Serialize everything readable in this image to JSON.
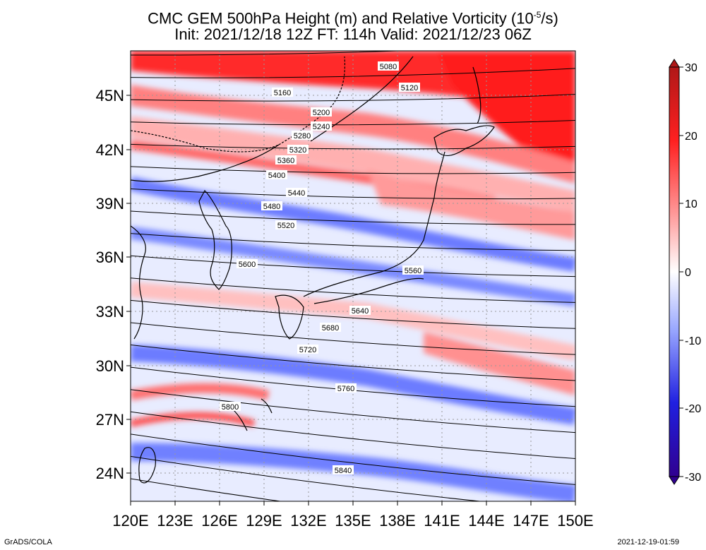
{
  "title": {
    "line1": "CMC GEM 500hPa Height (m) and Relative Vorticity (10",
    "line1_sup": "-5",
    "line1_end": "/s)",
    "line2": "Init: 2021/12/18 12Z  FT: 114h  Valid: 2021/12/23 06Z"
  },
  "map": {
    "lon_labels": [
      "120E",
      "123E",
      "126E",
      "129E",
      "132E",
      "135E",
      "138E",
      "141E",
      "144E",
      "147E",
      "150E"
    ],
    "lat_labels": [
      "45N",
      "42N",
      "39N",
      "36N",
      "33N",
      "30N",
      "27N",
      "24N"
    ],
    "height_contours": [
      "5080",
      "5120",
      "5160",
      "5200",
      "5240",
      "5280",
      "5320",
      "5360",
      "5400",
      "5440",
      "5480",
      "5520",
      "5560",
      "5600",
      "5640",
      "5680",
      "5720",
      "5760",
      "5800",
      "5840"
    ],
    "contour_color": "#000000",
    "coastline_color": "#000000"
  },
  "colorbar": {
    "labels": [
      "30",
      "20",
      "10",
      "0",
      "-10",
      "-20",
      "-30"
    ],
    "colors": {
      "max": "#b01818",
      "high": "#ff2020",
      "mid_high": "#ff9a9a",
      "zero": "#ffffff",
      "mid_low": "#9aa8ff",
      "low": "#2020e0",
      "min": "#300090"
    }
  },
  "footer": {
    "left": "GrADS/COLA",
    "right": "2021-12-19-01:59"
  }
}
